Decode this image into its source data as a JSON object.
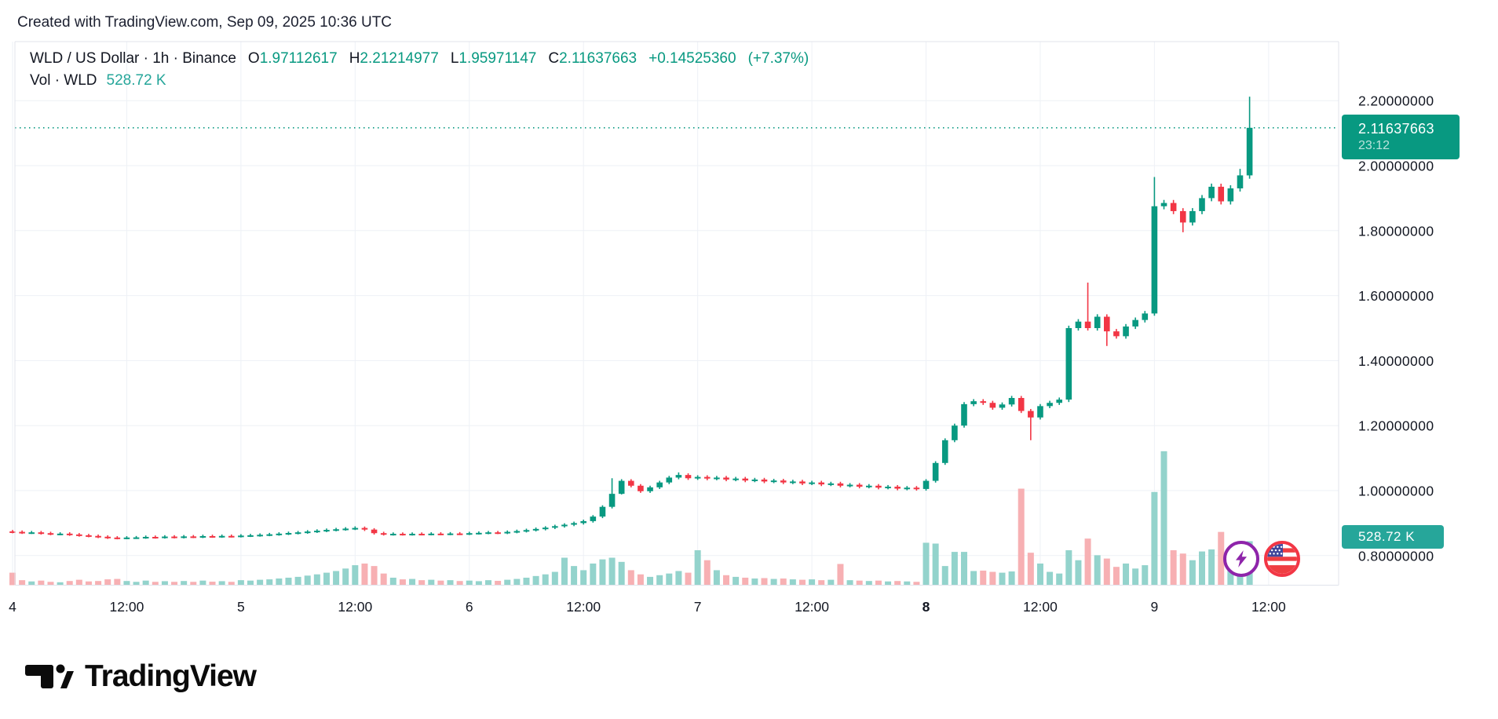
{
  "snapshot_title": "Created with TradingView.com, Sep 09, 2025 10:36 UTC",
  "legend": {
    "symbol": "WLD / US Dollar · 1h · Binance",
    "o_label": "O",
    "o_value": "1.97112617",
    "h_label": "H",
    "h_value": "2.21214977",
    "l_label": "L",
    "l_value": "1.95971147",
    "c_label": "C",
    "c_value": "2.11637663",
    "change": "+0.14525360",
    "change_pct": "(+7.37%)",
    "vol_label": "Vol · WLD",
    "vol_value": "528.72 K"
  },
  "price_badge": {
    "price": "2.11637663",
    "countdown": "23:12"
  },
  "volume_badge": {
    "text": "528.72 K"
  },
  "logo": {
    "text": "TradingView"
  },
  "icons": {
    "bolt": "lightning-bolt",
    "flag": "us-flag"
  },
  "colors": {
    "up": "#089981",
    "down": "#f23645",
    "vol_up": "#93d3cc",
    "vol_down": "#f7b0b3",
    "grid": "#eef1f6",
    "border": "#e0e3eb",
    "axis_text": "#131722",
    "accent_teal": "#26a69a"
  },
  "chart_data": {
    "type": "candlestick",
    "title": "WLD / US Dollar · 1h · Binance",
    "interval_hours": 1,
    "x_start": "Sep 4 00:00 UTC",
    "x_end": "Sep 9 10:00 UTC",
    "last_candle": {
      "open": 1.97112617,
      "high": 2.21214977,
      "low": 1.95971147,
      "close": 2.11637663,
      "volume": "528.72 K"
    },
    "current_price": 2.11637663,
    "price_axis": {
      "labels": [
        "2.20000000",
        "2.00000000",
        "1.80000000",
        "1.60000000",
        "1.40000000",
        "1.20000000",
        "1.00000000",
        "0.80000000"
      ],
      "values": [
        2.2,
        2.0,
        1.8,
        1.6,
        1.4,
        1.2,
        1.0,
        0.8
      ]
    },
    "time_axis": [
      {
        "text": "4",
        "hour": 0,
        "bold": false
      },
      {
        "text": "12:00",
        "hour": 12,
        "bold": false
      },
      {
        "text": "5",
        "hour": 24,
        "bold": false
      },
      {
        "text": "12:00",
        "hour": 36,
        "bold": false
      },
      {
        "text": "6",
        "hour": 48,
        "bold": false
      },
      {
        "text": "12:00",
        "hour": 60,
        "bold": false
      },
      {
        "text": "7",
        "hour": 72,
        "bold": false
      },
      {
        "text": "12:00",
        "hour": 84,
        "bold": false
      },
      {
        "text": "8",
        "hour": 96,
        "bold": true
      },
      {
        "text": "12:00",
        "hour": 108,
        "bold": false
      },
      {
        "text": "9",
        "hour": 120,
        "bold": false
      },
      {
        "text": "12:00",
        "hour": 132,
        "bold": false
      }
    ],
    "first_open": 0.8745,
    "closes": [
      0.873,
      0.871,
      0.8715,
      0.869,
      0.867,
      0.8675,
      0.865,
      0.8625,
      0.8605,
      0.858,
      0.8555,
      0.8545,
      0.8555,
      0.856,
      0.8575,
      0.8565,
      0.8585,
      0.857,
      0.859,
      0.858,
      0.86,
      0.859,
      0.8605,
      0.86,
      0.8615,
      0.8625,
      0.864,
      0.8655,
      0.8675,
      0.8695,
      0.8715,
      0.874,
      0.8765,
      0.879,
      0.881,
      0.883,
      0.885,
      0.88,
      0.869,
      0.866,
      0.867,
      0.866,
      0.867,
      0.8665,
      0.8675,
      0.867,
      0.868,
      0.8675,
      0.869,
      0.87,
      0.8715,
      0.8705,
      0.873,
      0.8755,
      0.8785,
      0.882,
      0.886,
      0.8905,
      0.895,
      0.9,
      0.906,
      0.92,
      0.95,
      0.99,
      1.03,
      1.015,
      0.998,
      1.01,
      1.025,
      1.04,
      1.048,
      1.038,
      1.042,
      1.037,
      1.04,
      1.034,
      1.037,
      1.031,
      1.034,
      1.028,
      1.031,
      1.025,
      1.028,
      1.022,
      1.025,
      1.019,
      1.022,
      1.015,
      1.018,
      1.012,
      1.015,
      1.009,
      1.012,
      1.006,
      1.009,
      1.005,
      1.03,
      1.085,
      1.155,
      1.2,
      1.266,
      1.275,
      1.27,
      1.255,
      1.265,
      1.285,
      1.245,
      1.225,
      1.26,
      1.27,
      1.28,
      1.5,
      1.52,
      1.5,
      1.535,
      1.49,
      1.475,
      1.505,
      1.525,
      1.545,
      1.875,
      1.885,
      1.86,
      1.825,
      1.86,
      1.9,
      1.935,
      1.89,
      1.93,
      1.97,
      2.11637663
    ],
    "volumes_k": [
      150,
      60,
      45,
      55,
      40,
      35,
      50,
      65,
      45,
      50,
      70,
      75,
      50,
      40,
      55,
      40,
      48,
      40,
      50,
      40,
      55,
      42,
      48,
      40,
      60,
      55,
      65,
      70,
      80,
      90,
      100,
      115,
      130,
      150,
      170,
      200,
      240,
      260,
      230,
      140,
      90,
      70,
      75,
      60,
      65,
      55,
      60,
      50,
      55,
      48,
      60,
      52,
      65,
      75,
      90,
      110,
      130,
      160,
      330,
      230,
      180,
      260,
      310,
      330,
      280,
      180,
      130,
      100,
      120,
      140,
      170,
      150,
      420,
      300,
      180,
      120,
      100,
      90,
      80,
      85,
      75,
      80,
      70,
      65,
      70,
      60,
      65,
      255,
      60,
      55,
      50,
      55,
      45,
      50,
      45,
      40,
      510,
      500,
      230,
      400,
      400,
      170,
      175,
      160,
      150,
      165,
      1160,
      390,
      260,
      160,
      140,
      420,
      300,
      560,
      360,
      320,
      220,
      260,
      200,
      240,
      1120,
      1610,
      420,
      380,
      300,
      405,
      430,
      640,
      300,
      260,
      528.72
    ],
    "wick_frac": 0.005,
    "high_overrides": {
      "36": 0.89,
      "63": 1.038,
      "70": 1.056,
      "113": 1.64,
      "120": 1.965,
      "129": 1.99,
      "130": 2.21214977
    },
    "low_overrides": {
      "11": 0.85,
      "64": 0.988,
      "107": 1.155,
      "115": 1.445,
      "120": 1.538,
      "123": 1.795,
      "130": 1.95971147
    },
    "legend_note": "grid on, price scale right, volume pane overlaid at bottom"
  }
}
